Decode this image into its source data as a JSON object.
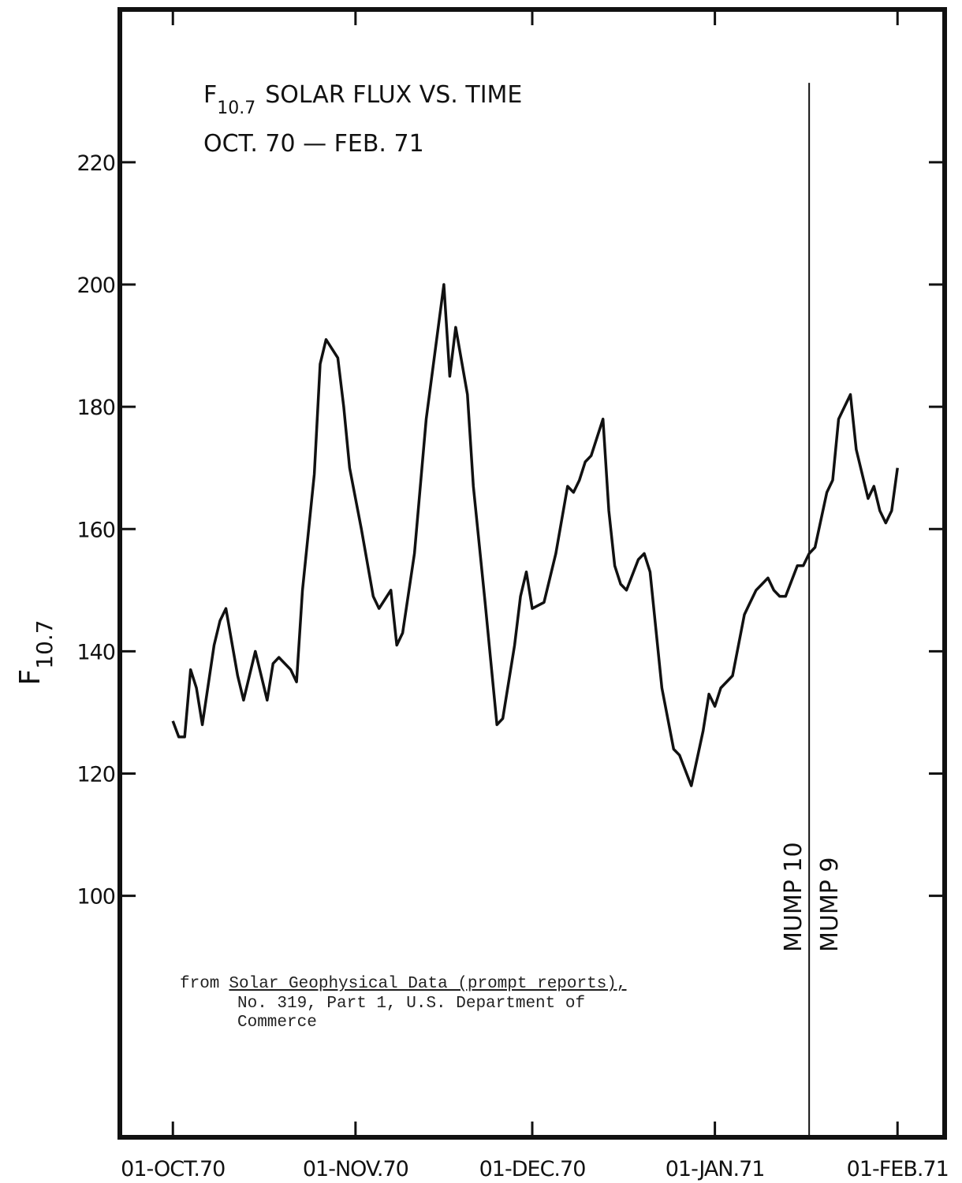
{
  "chart_data": {
    "type": "line",
    "title_symbol": "F",
    "title_subscript": "10.7",
    "title": "SOLAR FLUX VS. TIME",
    "subtitle": "OCT. 70 — FEB. 71",
    "y_label_symbol": "F",
    "y_label_subscript": "10.7",
    "note": {
      "prefix": "from",
      "source": "Solar Geophysical Data (prompt reports),",
      "lines": [
        "No. 319, Part 1, U.S. Department of",
        "Commerce"
      ]
    },
    "color": "#111111",
    "x": [
      "1970-10-01",
      "1970-10-02",
      "1970-10-03",
      "1970-10-04",
      "1970-10-05",
      "1970-10-06",
      "1970-10-08",
      "1970-10-09",
      "1970-10-10",
      "1970-10-12",
      "1970-10-13",
      "1970-10-15",
      "1970-10-16",
      "1970-10-17",
      "1970-10-18",
      "1970-10-19",
      "1970-10-21",
      "1970-10-22",
      "1970-10-23",
      "1970-10-25",
      "1970-10-26",
      "1970-10-27",
      "1970-10-29",
      "1970-10-30",
      "1970-10-31",
      "1970-11-02",
      "1970-11-04",
      "1970-11-05",
      "1970-11-07",
      "1970-11-08",
      "1970-11-09",
      "1970-11-11",
      "1970-11-13",
      "1970-11-16",
      "1970-11-17",
      "1970-11-18",
      "1970-11-20",
      "1970-11-21",
      "1970-11-23",
      "1970-11-25",
      "1970-11-26",
      "1970-11-28",
      "1970-11-29",
      "1970-11-30",
      "1970-12-01",
      "1970-12-03",
      "1970-12-05",
      "1970-12-07",
      "1970-12-08",
      "1970-12-09",
      "1970-12-10",
      "1970-12-11",
      "1970-12-13",
      "1970-12-14",
      "1970-12-15",
      "1970-12-16",
      "1970-12-17",
      "1970-12-19",
      "1970-12-20",
      "1970-12-21",
      "1970-12-23",
      "1970-12-25",
      "1970-12-26",
      "1970-12-28",
      "1970-12-30",
      "1970-12-31",
      "1971-01-01",
      "1971-01-02",
      "1971-01-04",
      "1971-01-06",
      "1971-01-07",
      "1971-01-08",
      "1971-01-09",
      "1971-01-10",
      "1971-01-11",
      "1971-01-12",
      "1971-01-13",
      "1971-01-15",
      "1971-01-16",
      "1971-01-17",
      "1971-01-18",
      "1971-01-20",
      "1971-01-21",
      "1971-01-22",
      "1971-01-23",
      "1971-01-24",
      "1971-01-25",
      "1971-01-27",
      "1971-01-28",
      "1971-01-29",
      "1971-01-30",
      "1971-01-31",
      "1971-02-01"
    ],
    "values": [
      128.6,
      126,
      126,
      137,
      134,
      128,
      141,
      145,
      147,
      136,
      132,
      140,
      136,
      132,
      138,
      139,
      137,
      135,
      150,
      169,
      187,
      191,
      188,
      180,
      170,
      160,
      149,
      147,
      150,
      141,
      143,
      156,
      178,
      200,
      185,
      193,
      182,
      167,
      148,
      128,
      129,
      141,
      149,
      153,
      147,
      148,
      156,
      167,
      166,
      168,
      171,
      172,
      178,
      163,
      154,
      151,
      150,
      155,
      156,
      153,
      134,
      124,
      123,
      118,
      127,
      133,
      131,
      134,
      136,
      146,
      148,
      150,
      151,
      152,
      150,
      149,
      149,
      154,
      154,
      156,
      157,
      166,
      168,
      178,
      180,
      182,
      173,
      165,
      167,
      163,
      161,
      163,
      170
    ],
    "xlim": [
      "1970-09-22",
      "1971-02-09"
    ],
    "xticks": [
      {
        "value": "1970-10-01",
        "label": "01-OCT.70"
      },
      {
        "value": "1970-11-01",
        "label": "01-NOV.70"
      },
      {
        "value": "1970-12-01",
        "label": "01-DEC.70"
      },
      {
        "value": "1971-01-01",
        "label": "01-JAN.71"
      },
      {
        "value": "1971-02-01",
        "label": "01-FEB.71"
      }
    ],
    "ylim": [
      60.5,
      245
    ],
    "yticks": [
      100,
      120,
      140,
      160,
      180,
      200,
      220
    ],
    "marker_line": {
      "x": "1971-01-17",
      "top": 233,
      "label_left": "MUMP 10",
      "label_right": "MUMP 9"
    }
  }
}
